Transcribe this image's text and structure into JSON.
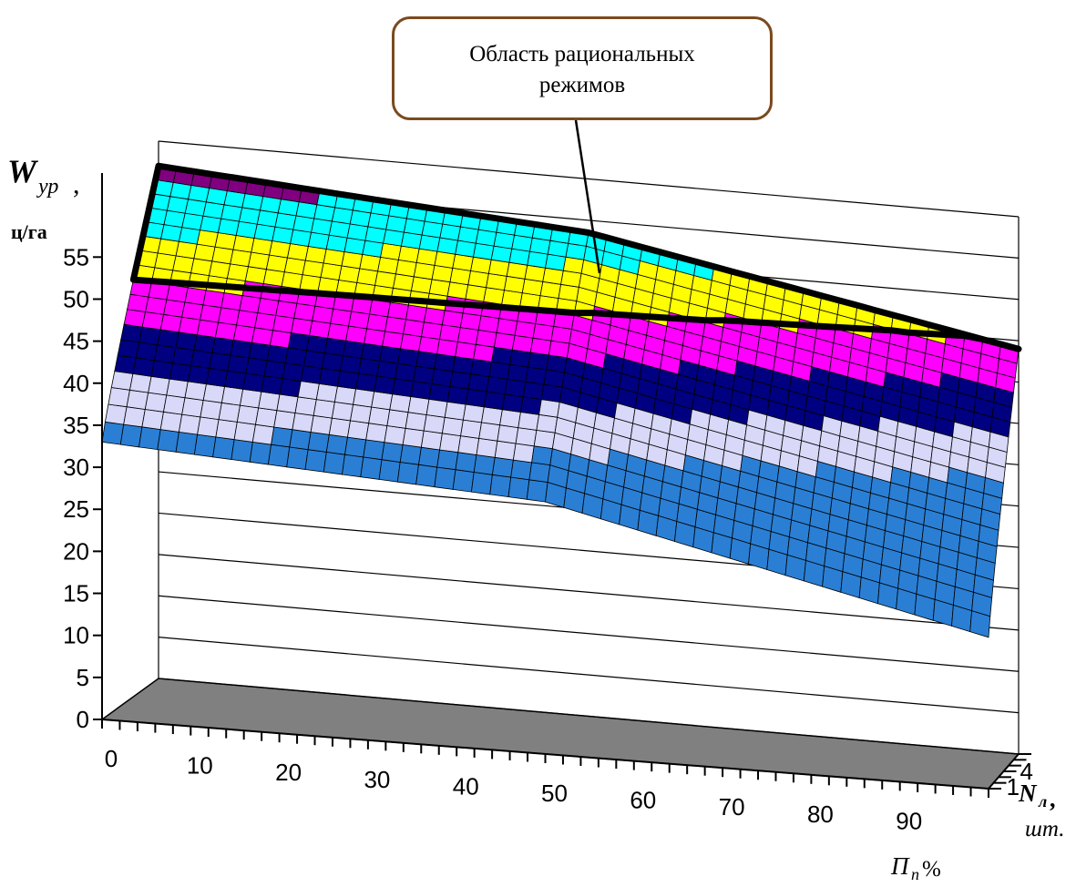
{
  "callout": {
    "line1": "Область рациональных",
    "line2": "режимов"
  },
  "colors": {
    "bands": [
      "#2a7fd4",
      "#d8d8f8",
      "#000080",
      "#ff00ff",
      "#ffff00",
      "#00ffff",
      "#800080"
    ],
    "floor": "#808080",
    "outline": "#000000",
    "callout_border": "#7a4a1e"
  },
  "chart_data": {
    "type": "surface3d",
    "zlabel_main": "W",
    "zlabel_sub": "ур",
    "zlabel_unit": "ц/га",
    "xlabel_main": "П",
    "xlabel_sub": "п",
    "xlabel_unit": "%",
    "ylabel_main": "N",
    "ylabel_sub": "л",
    "ylabel_unit": "шт.",
    "z_ticks": [
      "0",
      "5",
      "10",
      "15",
      "20",
      "25",
      "30",
      "35",
      "40",
      "45",
      "50",
      "55"
    ],
    "z_range": [
      0,
      65
    ],
    "x_ticks": [
      "0",
      "10",
      "20",
      "30",
      "40",
      "50",
      "60",
      "70",
      "80",
      "90"
    ],
    "x_range": [
      0,
      100
    ],
    "y_ticks": [
      "1",
      "4"
    ],
    "band_bounds": [
      30,
      35,
      40,
      45,
      50,
      55,
      60,
      65
    ],
    "surface": {
      "back_edge": {
        "x": [
          0,
          50,
          100
        ],
        "z": [
          62,
          58.5,
          49
        ]
      },
      "front_edge": {
        "x": [
          0,
          50,
          100
        ],
        "z": [
          33,
          30,
          18
        ]
      }
    },
    "rational_region": "50–65"
  }
}
